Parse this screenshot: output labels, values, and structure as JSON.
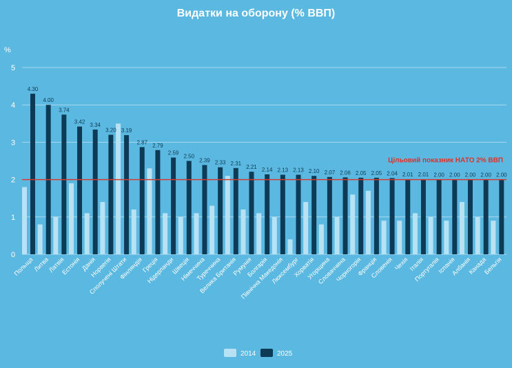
{
  "chart_data": {
    "type": "bar",
    "title": "Видатки на оборону (% ВВП)",
    "ylabel": "%",
    "ylim": [
      0,
      5
    ],
    "yticks": [
      "0",
      "1",
      "2",
      "3",
      "4",
      "5"
    ],
    "target": {
      "value": 2,
      "label": "Цільовий показник НАТО 2% ВВП"
    },
    "categories": [
      "Польща",
      "Литва",
      "Латвія",
      "Естонія",
      "Данія",
      "Норвегія",
      "Сполучені Штати",
      "Фінляндія",
      "Греція",
      "Нідерланди",
      "Швеція",
      "Німеччина",
      "Туреччина",
      "Велика Британія",
      "Румунія",
      "Болгарія",
      "Північна Македонія",
      "Люксембург",
      "Хорватія",
      "Угорщина",
      "Словаччина",
      "Чорногорія",
      "Франція",
      "Словенія",
      "Чехія",
      "Італія",
      "Португалія",
      "Іспанія",
      "Албанія",
      "Канада",
      "Бельгія"
    ],
    "series": [
      {
        "name": "2014",
        "color": "#b7e2f4",
        "values": [
          1.8,
          0.8,
          1.0,
          1.9,
          1.1,
          1.4,
          3.5,
          1.2,
          2.3,
          1.1,
          1.0,
          1.1,
          1.3,
          2.1,
          1.2,
          1.1,
          1.0,
          0.4,
          1.4,
          0.8,
          1.0,
          1.6,
          1.7,
          0.9,
          0.9,
          1.1,
          1.0,
          0.9,
          1.4,
          1.0,
          0.9
        ]
      },
      {
        "name": "2025",
        "color": "#0d3b55",
        "values": [
          4.3,
          4.0,
          3.74,
          3.42,
          3.34,
          3.2,
          3.19,
          2.87,
          2.79,
          2.59,
          2.5,
          2.39,
          2.33,
          2.31,
          2.21,
          2.14,
          2.13,
          2.13,
          2.1,
          2.07,
          2.06,
          2.05,
          2.05,
          2.04,
          2.01,
          2.01,
          2.0,
          2.0,
          2.0,
          2.0,
          2.0
        ]
      }
    ],
    "value_labels_2025": [
      "4.30",
      "4.00",
      "3.74",
      "3.42",
      "3.34",
      "3.20",
      "3.19",
      "2.87",
      "2.79",
      "2.59",
      "2.50",
      "2.39",
      "2.33",
      "2.31",
      "2.21",
      "2.14",
      "2.13",
      "2.13",
      "2.10",
      "2.07",
      "2.06",
      "2.05",
      "2.05",
      "2.04",
      "2.01",
      "2.01",
      "2.00",
      "2.00",
      "2.00",
      "2.00",
      "2.00"
    ],
    "legend": [
      "2014",
      "2025"
    ],
    "legend_position": "bottom-center",
    "grid": true
  }
}
